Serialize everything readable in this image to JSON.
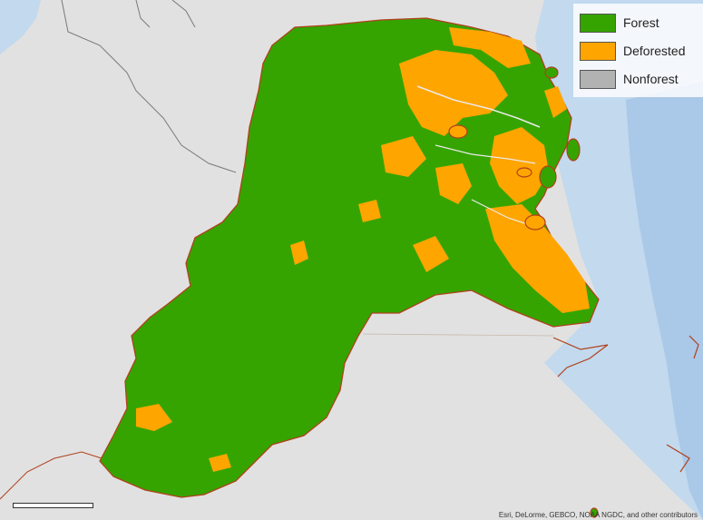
{
  "legend": {
    "items": [
      {
        "label": "Forest",
        "color": "#35a400"
      },
      {
        "label": "Deforested",
        "color": "#ffa500"
      },
      {
        "label": "Nonforest",
        "color": "#b2b2b2"
      }
    ]
  },
  "map": {
    "land_color": "#e1e1e1",
    "sea_color": "#c2d9ee",
    "deep_sea_color": "#9fc1e4",
    "border_color": "#b0411c",
    "boundary_color": "#7a7a7a"
  },
  "attribution": "Esri, DeLorme, GEBCO, NOAA NGDC, and other contributors"
}
